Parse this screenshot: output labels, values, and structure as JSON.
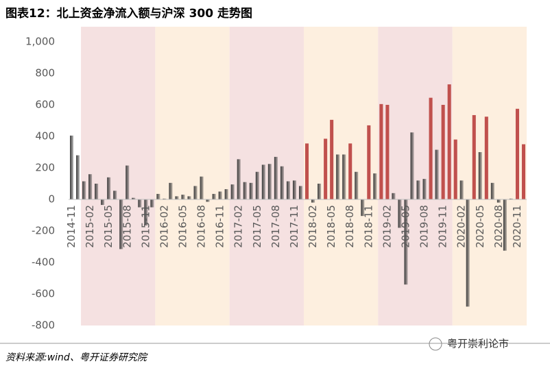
{
  "chart_data": {
    "type": "bar",
    "title": "图表12：北上资金净流入额与沪深 300 走势图",
    "source": "资料来源:wind、粤开证券研究院",
    "watermark": "粤开崇利论市",
    "categories": [
      "2014-11",
      null,
      null,
      "2015-02",
      null,
      null,
      "2015-05",
      null,
      null,
      "2015-08",
      null,
      null,
      "2015-11",
      null,
      null,
      "2016-02",
      null,
      null,
      "2016-05",
      null,
      null,
      "2016-08",
      null,
      null,
      "2016-11",
      null,
      null,
      "2017-02",
      null,
      null,
      "2017-05",
      null,
      null,
      "2017-08",
      null,
      null,
      "2017-11",
      null,
      null,
      "2018-02",
      null,
      null,
      "2018-05",
      null,
      null,
      "2018-08",
      null,
      null,
      "2018-11",
      null,
      null,
      "2019-02",
      null,
      null,
      "2019-05",
      null,
      null,
      "2019-08",
      null,
      null,
      "2019-11",
      null,
      null,
      "2020-02",
      null,
      null,
      "2020-05",
      null,
      null,
      "2020-08",
      null,
      null,
      "2020-11",
      null
    ],
    "values": [
      405,
      280,
      115,
      160,
      100,
      -35,
      140,
      55,
      -315,
      215,
      10,
      -50,
      -165,
      -50,
      35,
      5,
      105,
      20,
      30,
      20,
      85,
      145,
      -15,
      35,
      50,
      65,
      95,
      255,
      110,
      105,
      175,
      220,
      225,
      270,
      210,
      115,
      120,
      85,
      355,
      -20,
      100,
      385,
      505,
      285,
      285,
      355,
      175,
      -105,
      470,
      165,
      605,
      600,
      40,
      -180,
      -540,
      425,
      120,
      130,
      645,
      315,
      600,
      730,
      380,
      120,
      -680,
      535,
      300,
      525,
      105,
      -20,
      -325,
      5,
      575,
      350
    ],
    "colors": [
      "#3b3b3b",
      "#3b3b3b",
      "#3b3b3b",
      "#3b3b3b",
      "#3b3b3b",
      "#3b3b3b",
      "#3b3b3b",
      "#3b3b3b",
      "#3b3b3b",
      "#3b3b3b",
      "#3b3b3b",
      "#3b3b3b",
      "#3b3b3b",
      "#3b3b3b",
      "#3b3b3b",
      "#3b3b3b",
      "#3b3b3b",
      "#3b3b3b",
      "#3b3b3b",
      "#3b3b3b",
      "#3b3b3b",
      "#3b3b3b",
      "#3b3b3b",
      "#3b3b3b",
      "#3b3b3b",
      "#3b3b3b",
      "#3b3b3b",
      "#3b3b3b",
      "#3b3b3b",
      "#3b3b3b",
      "#3b3b3b",
      "#3b3b3b",
      "#3b3b3b",
      "#3b3b3b",
      "#3b3b3b",
      "#3b3b3b",
      "#3b3b3b",
      "#3b3b3b",
      "#c0504d",
      "#3b3b3b",
      "#3b3b3b",
      "#c0504d",
      "#c0504d",
      "#3b3b3b",
      "#3b3b3b",
      "#c0504d",
      "#3b3b3b",
      "#3b3b3b",
      "#c0504d",
      "#3b3b3b",
      "#c0504d",
      "#c0504d",
      "#3b3b3b",
      "#3b3b3b",
      "#3b3b3b",
      "#3b3b3b",
      "#3b3b3b",
      "#3b3b3b",
      "#c0504d",
      "#3b3b3b",
      "#c0504d",
      "#c0504d",
      "#c0504d",
      "#3b3b3b",
      "#3b3b3b",
      "#c0504d",
      "#3b3b3b",
      "#c0504d",
      "#3b3b3b",
      "#3b3b3b",
      "#3b3b3b",
      "#3b3b3b",
      "#c0504d",
      "#c0504d"
    ],
    "ylim": [
      -800,
      1000
    ],
    "yticks": [
      {
        "value": 1000,
        "label": "1,000"
      },
      800,
      600,
      400,
      200,
      0,
      -200,
      -400,
      -600,
      -800
    ],
    "grid": false
  }
}
